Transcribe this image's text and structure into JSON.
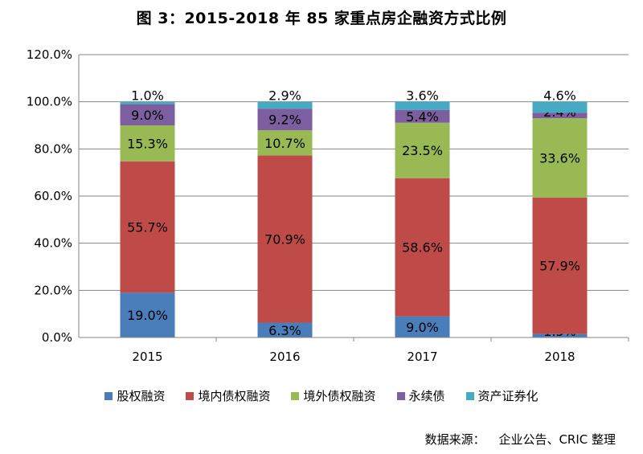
{
  "chart_data": {
    "type": "bar",
    "stacked": true,
    "title": "图 3：2015-2018 年 85 家重点房企融资方式比例",
    "categories": [
      "2015",
      "2016",
      "2017",
      "2018"
    ],
    "ylim": [
      0,
      120
    ],
    "yticks": [
      "0.0%",
      "20.0%",
      "40.0%",
      "60.0%",
      "80.0%",
      "100.0%",
      "120.0%"
    ],
    "grid": true,
    "legend_position": "bottom",
    "series": [
      {
        "name": "股权融资",
        "color": "#4A7EBB",
        "values": [
          19.0,
          6.3,
          9.0,
          1.5
        ],
        "labels": [
          "19.0%",
          "6.3%",
          "9.0%",
          "1.5%"
        ]
      },
      {
        "name": "境内债权融资",
        "color": "#BE4B48",
        "values": [
          55.7,
          70.9,
          58.6,
          57.9
        ],
        "labels": [
          "55.7%",
          "70.9%",
          "58.6%",
          "57.9%"
        ]
      },
      {
        "name": "境外债权融资",
        "color": "#98B954",
        "values": [
          15.3,
          10.7,
          23.5,
          33.6
        ],
        "labels": [
          "15.3%",
          "10.7%",
          "23.5%",
          "33.6%"
        ]
      },
      {
        "name": "永续债",
        "color": "#7D5FA0",
        "values": [
          9.0,
          9.2,
          5.4,
          2.4
        ],
        "labels": [
          "9.0%",
          "9.2%",
          "5.4%",
          "2.4%"
        ]
      },
      {
        "name": "资产证券化",
        "color": "#46AAC5",
        "values": [
          1.0,
          2.9,
          3.6,
          4.6
        ],
        "labels": [
          "1.0%",
          "2.9%",
          "3.6%",
          "4.6%"
        ]
      }
    ]
  },
  "source": {
    "label": "数据来源：",
    "text": "企业公告、CRIC 整理"
  }
}
